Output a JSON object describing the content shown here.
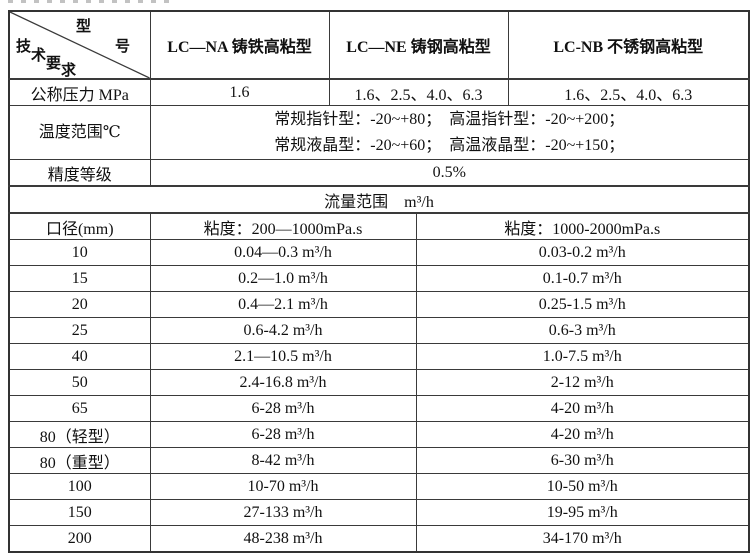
{
  "corner": {
    "diagonal_top": [
      "型",
      "号"
    ],
    "diagonal_bottom": [
      "技",
      "术",
      "要",
      "求"
    ]
  },
  "header": {
    "models": [
      "LC—NA 铸铁高粘型",
      "LC—NE 铸钢高粘型",
      "LC-NB 不锈钢高粘型"
    ]
  },
  "specs": {
    "pressure": {
      "label": "公称压力 MPa",
      "values": [
        "1.6",
        "1.6、2.5、4.0、6.3",
        "1.6、2.5、4.0、6.3"
      ]
    },
    "temperature": {
      "label": "温度范围℃",
      "line1": "常规指针型：-20~+80；　高温指针型：-20~+200；",
      "line2": "常规液晶型：-20~+60；　高温液晶型：-20~+150；"
    },
    "accuracy": {
      "label": "精度等级",
      "value": "0.5%"
    },
    "flow_section_title": "流量范围　m³/h"
  },
  "flow_table": {
    "columns": [
      "口径(mm)",
      "粘度：200—1000mPa.s",
      "粘度：1000-2000mPa.s"
    ],
    "rows": [
      [
        "10",
        "0.04—0.3 m³/h",
        "0.03-0.2 m³/h"
      ],
      [
        "15",
        "0.2—1.0 m³/h",
        "0.1-0.7 m³/h"
      ],
      [
        "20",
        "0.4—2.1 m³/h",
        "0.25-1.5 m³/h"
      ],
      [
        "25",
        "0.6-4.2 m³/h",
        "0.6-3 m³/h"
      ],
      [
        "40",
        "2.1—10.5 m³/h",
        "1.0-7.5 m³/h"
      ],
      [
        "50",
        "2.4-16.8 m³/h",
        "2-12 m³/h"
      ],
      [
        "65",
        "6-28 m³/h",
        "4-20 m³/h"
      ],
      [
        "80（轻型）",
        "6-28 m³/h",
        "4-20 m³/h"
      ],
      [
        "80（重型）",
        "8-42 m³/h",
        "6-30 m³/h"
      ],
      [
        "100",
        "10-70 m³/h",
        "10-50 m³/h"
      ],
      [
        "150",
        "27-133 m³/h",
        "19-95 m³/h"
      ],
      [
        "200",
        "48-238 m³/h",
        "34-170 m³/h"
      ]
    ]
  }
}
